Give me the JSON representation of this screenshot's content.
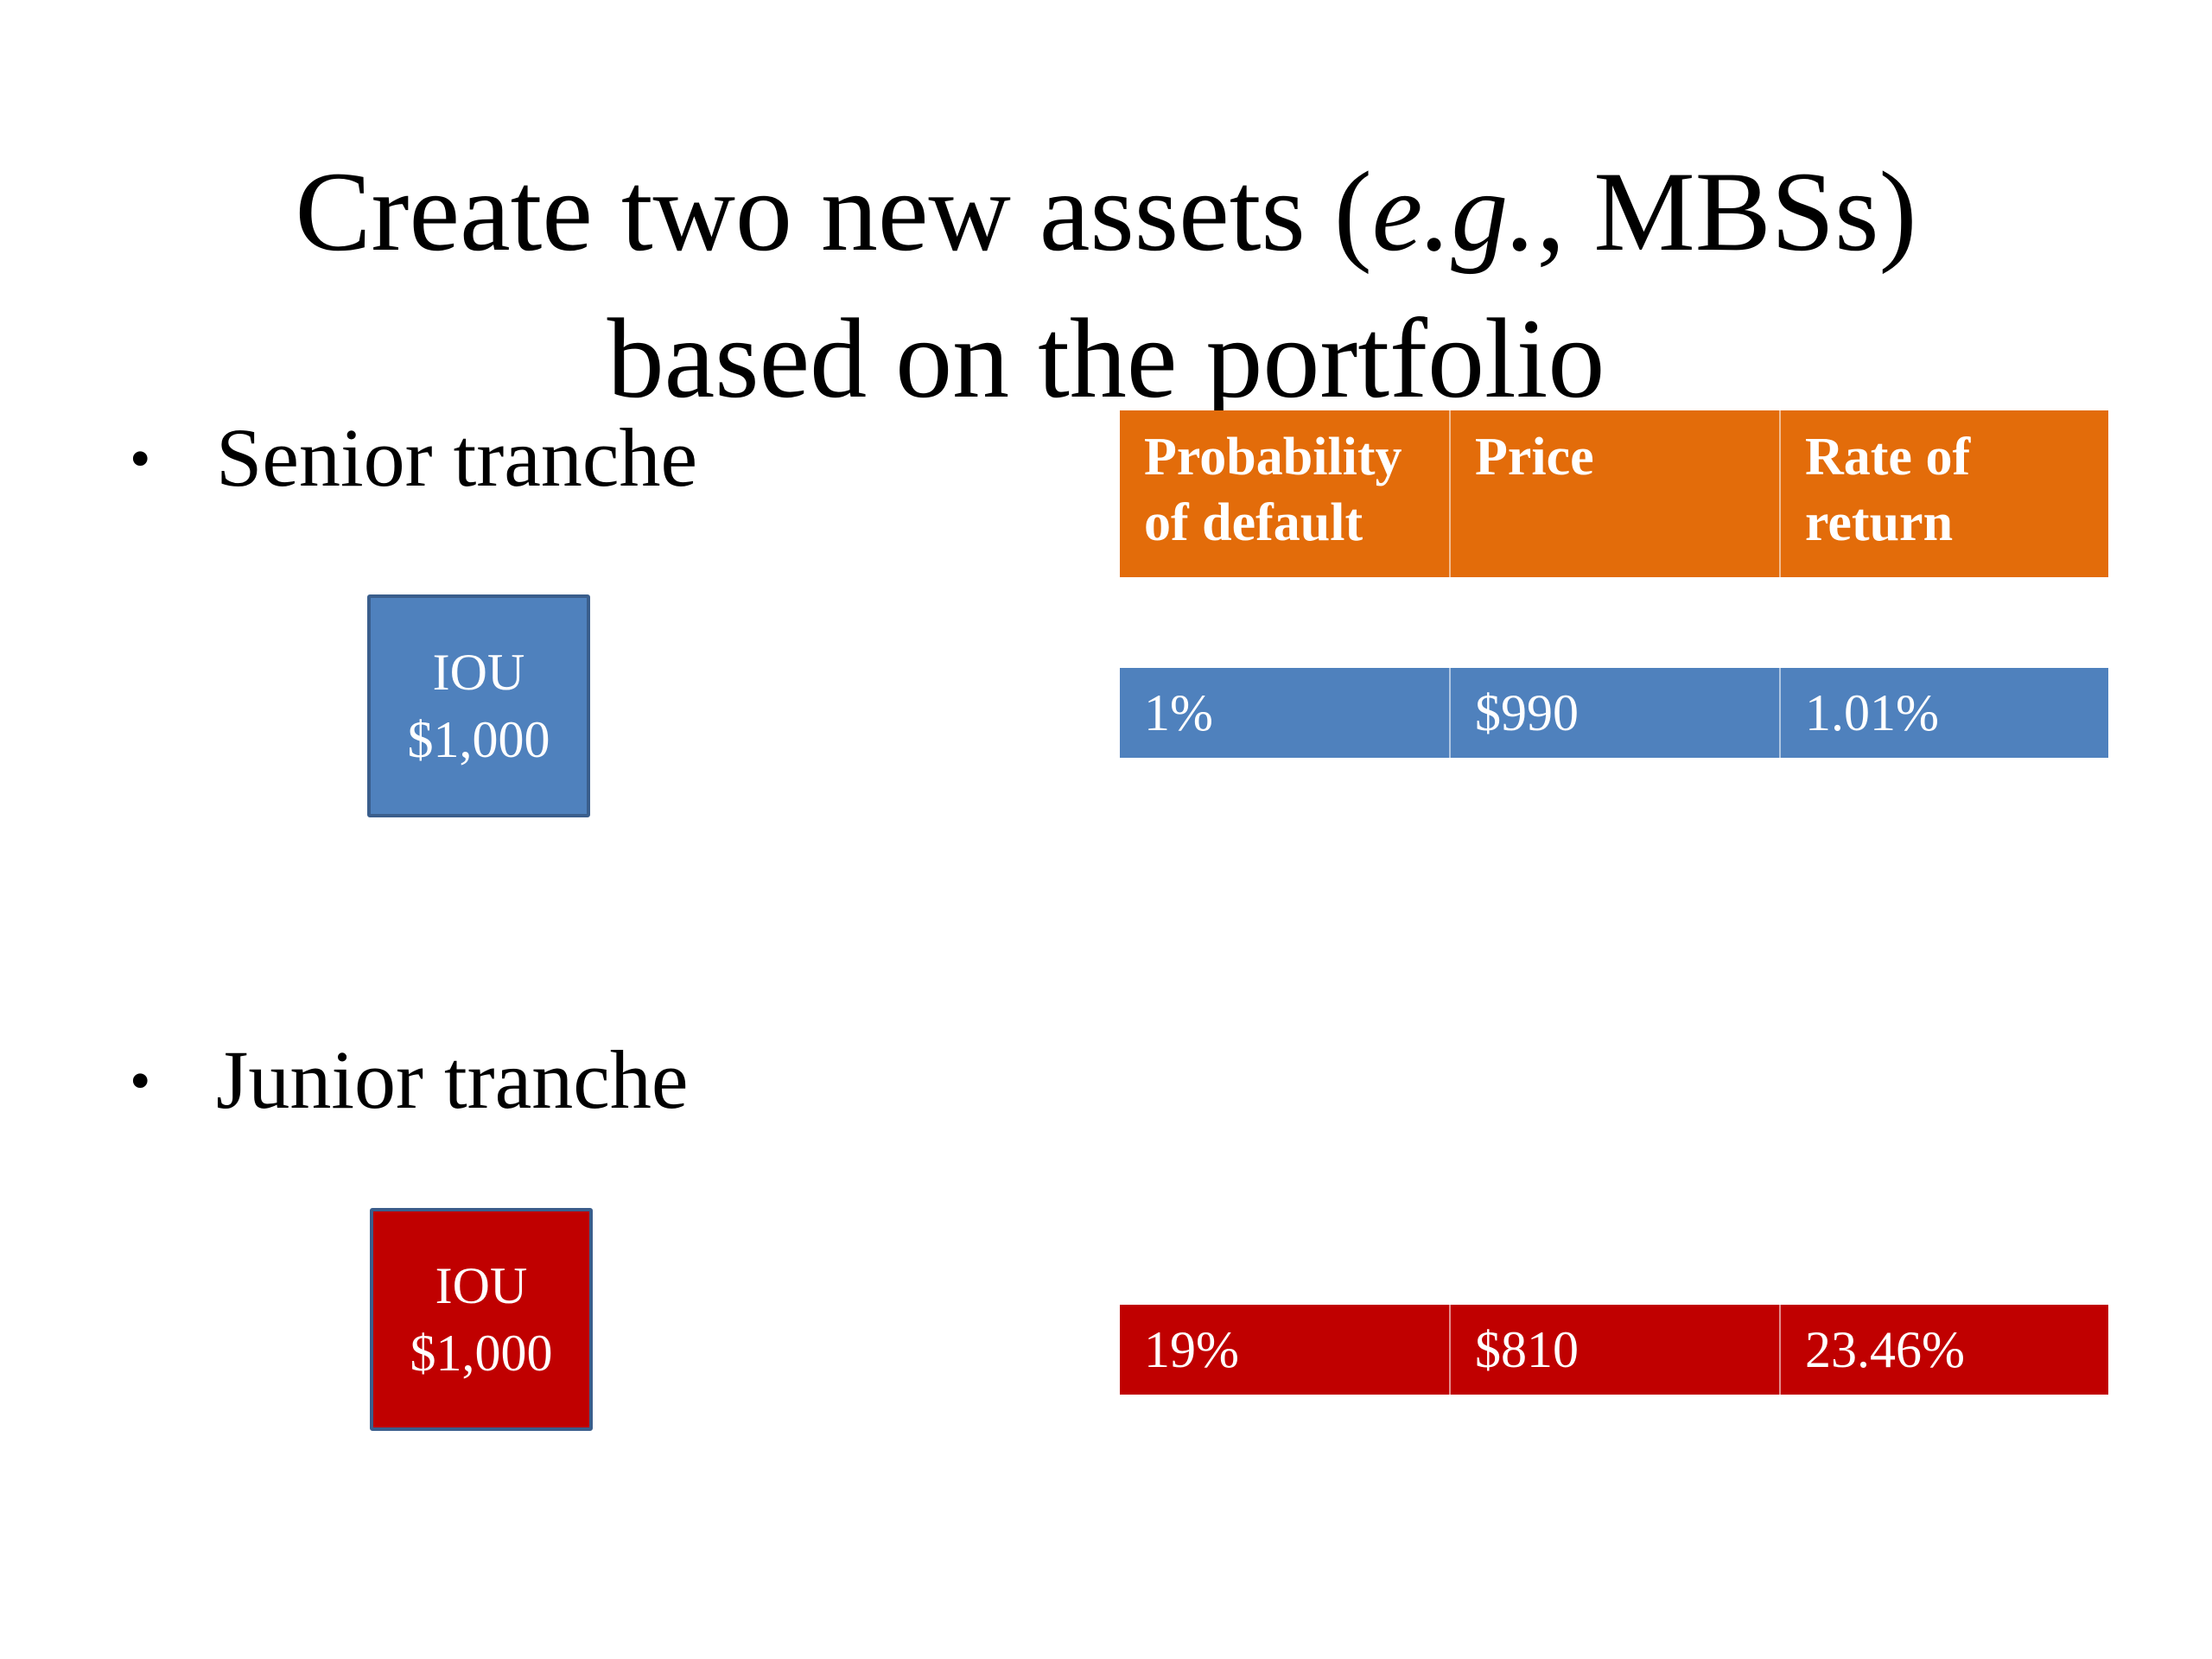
{
  "title": {
    "line1_prefix": "Create two new assets (",
    "line1_italic": "e.g.",
    "line1_suffix": ", MBSs)",
    "line2": "based on the portfolio"
  },
  "bullets": {
    "senior": "Senior tranche",
    "junior": "Junior tranche",
    "marker": "•"
  },
  "iou": {
    "senior": {
      "line1": "IOU",
      "line2": "$1,000",
      "color": "#4f81bd"
    },
    "junior": {
      "line1": "IOU",
      "line2": "$1,000",
      "color": "#c00000"
    }
  },
  "table": {
    "header_color": "#e36c0a",
    "headers": [
      "Probability of default",
      "Price",
      "Rate of return"
    ],
    "rows": [
      {
        "tranche": "senior",
        "color": "#4f81bd",
        "cells": [
          "1%",
          "$990",
          "1.01%"
        ]
      },
      {
        "tranche": "junior",
        "color": "#c00000",
        "cells": [
          "19%",
          "$810",
          "23.46%"
        ]
      }
    ]
  }
}
